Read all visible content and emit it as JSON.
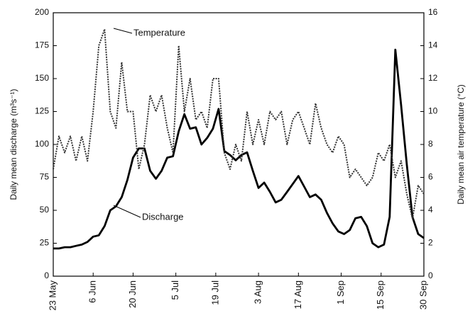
{
  "chart_data": {
    "type": "line",
    "y_label": "Daily mean discharge (m³s⁻¹)",
    "y2_label": "Daily mean air temperature (°C)",
    "annotations": [
      "Temperature",
      "Discharge"
    ],
    "x": [
      0,
      2,
      4,
      6,
      8,
      10,
      12,
      14,
      16,
      18,
      20,
      22,
      24,
      26,
      28,
      30,
      32,
      34,
      36,
      38,
      40,
      42,
      44,
      46,
      48,
      50,
      52,
      54,
      56,
      58,
      60,
      62,
      64,
      66,
      68,
      70,
      72,
      74,
      76,
      78,
      80,
      82,
      84,
      86,
      88,
      90,
      92,
      94,
      96,
      98,
      100,
      102,
      104,
      106,
      108,
      110,
      112,
      114,
      116,
      118,
      120,
      122,
      124,
      126,
      128,
      130
    ],
    "xlim": [
      0,
      130
    ],
    "xticks": [
      {
        "value": 0,
        "label": "23 May"
      },
      {
        "value": 14,
        "label": "6 Jun"
      },
      {
        "value": 28,
        "label": "20 Jun"
      },
      {
        "value": 43,
        "label": "5 Jul"
      },
      {
        "value": 57,
        "label": "19 Jul"
      },
      {
        "value": 72,
        "label": "3 Aug"
      },
      {
        "value": 86,
        "label": "17 Aug"
      },
      {
        "value": 101,
        "label": "1 Sep"
      },
      {
        "value": 115,
        "label": "15 Sep"
      },
      {
        "value": 130,
        "label": "30 Sep"
      }
    ],
    "ylim": [
      0,
      200
    ],
    "yticks": [
      0,
      25,
      50,
      75,
      100,
      125,
      150,
      175,
      200
    ],
    "y2lim": [
      0,
      16
    ],
    "y2ticks": [
      0,
      2,
      4,
      6,
      8,
      10,
      12,
      14,
      16
    ],
    "series": [
      {
        "name": "Discharge",
        "color": "#000000",
        "values": [
          21,
          21,
          22,
          22,
          23,
          24,
          26,
          30,
          31,
          38,
          50,
          53,
          60,
          73,
          90,
          97,
          97,
          80,
          74,
          80,
          90,
          91,
          110,
          123,
          112,
          113,
          100,
          105,
          112,
          127,
          95,
          92,
          88,
          92,
          94,
          80,
          67,
          71,
          64,
          56,
          58,
          64,
          70,
          76,
          68,
          60,
          62,
          58,
          48,
          40,
          34,
          32,
          35,
          44,
          45,
          38,
          25,
          22,
          24,
          45,
          172,
          130,
          85,
          45,
          32,
          29
        ]
      },
      {
        "name": "Temperature",
        "color": "#333333",
        "axis": "y2",
        "values": [
          6.5,
          8.5,
          7.5,
          8.5,
          7,
          8.5,
          7,
          10,
          14,
          15,
          10,
          9,
          13,
          10,
          10,
          6.5,
          8,
          11,
          10,
          11,
          9,
          7.5,
          14,
          10,
          12,
          9.5,
          10,
          9,
          12,
          12,
          7.5,
          6.5,
          8,
          7,
          10,
          8,
          9.5,
          8,
          10,
          9.5,
          10,
          8,
          9.5,
          10,
          9,
          8,
          10.5,
          9,
          8,
          7.5,
          8.5,
          8,
          6,
          6.5,
          6,
          5.5,
          6,
          7.5,
          7,
          8,
          6,
          7,
          5,
          3.5,
          5.5,
          5
        ]
      }
    ]
  }
}
